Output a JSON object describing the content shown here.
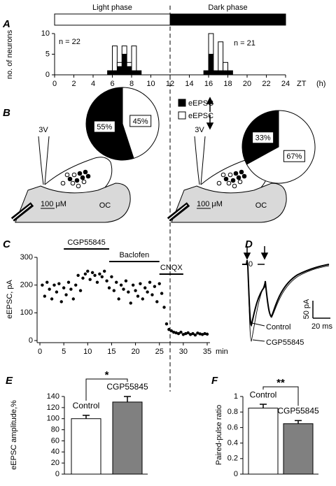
{
  "chart_data": [
    {
      "type": "histogram",
      "panel_label": "A",
      "phase_labels": [
        "Light phase",
        "Dark phase"
      ],
      "annotations": [
        "n = 22",
        "n = 21"
      ],
      "ylabel": "no. of neurons",
      "xlabel": "ZT",
      "xunit": "(h)",
      "bins": [
        5.5,
        6,
        6.5,
        7,
        7.5,
        8,
        8.5,
        9,
        9.5,
        10,
        10.5,
        11,
        11.5,
        12,
        12.5,
        13,
        13.5,
        14,
        14.5,
        15,
        15.5,
        16,
        16.5,
        17,
        17.5,
        18,
        18.5
      ],
      "series": [
        {
          "color": "#000000",
          "values": [
            1,
            1,
            2,
            5,
            2,
            1,
            1,
            0,
            0,
            0,
            0,
            0,
            0,
            0,
            0,
            0,
            0,
            0,
            0,
            0,
            1,
            5,
            1,
            1,
            1,
            1
          ]
        },
        {
          "color": "#ffffff",
          "values": [
            0,
            6,
            1,
            2,
            1,
            6,
            0,
            0,
            0,
            0,
            0,
            0,
            0,
            0,
            0,
            0,
            0,
            0,
            0,
            0,
            0,
            5,
            0,
            7,
            2,
            0
          ]
        }
      ],
      "xlim": [
        0,
        24
      ],
      "xticks": [
        0,
        2,
        4,
        6,
        8,
        10,
        12,
        14,
        16,
        18,
        20,
        22,
        24
      ],
      "ylim": [
        0,
        10
      ],
      "yticks": [
        0,
        5,
        10
      ]
    },
    {
      "type": "pie",
      "panel_label": "B",
      "categories": [
        "eEPSC",
        "eEPSC"
      ],
      "colors": [
        "#000000",
        "#ffffff"
      ],
      "values": [
        55,
        45
      ],
      "value_labels": [
        "55%",
        "45%"
      ],
      "schematic_labels": [
        "3V",
        "100 μM",
        "OC"
      ]
    },
    {
      "type": "pie",
      "colors": [
        "#000000",
        "#ffffff"
      ],
      "values": [
        33,
        67
      ],
      "value_labels": [
        "33%",
        "67%"
      ],
      "schematic_labels": [
        "3V",
        "100 μM",
        "OC"
      ]
    },
    {
      "type": "scatter",
      "panel_label": "C",
      "ylabel": "eEPSC, pA",
      "xlabel": "min",
      "color": "#000000",
      "x": [
        0.5,
        1,
        1.5,
        2,
        2.5,
        3,
        3.5,
        4,
        4.5,
        5,
        5.5,
        6,
        6.5,
        7,
        7.5,
        8,
        8.5,
        9,
        9.5,
        10,
        10.5,
        11,
        11.5,
        12,
        12.5,
        13,
        13.5,
        14,
        14.5,
        15,
        15.5,
        16,
        16.5,
        17,
        17.5,
        18,
        18.5,
        19,
        19.5,
        20,
        20.5,
        21,
        21.5,
        22,
        22.5,
        23,
        23.5,
        24,
        24.5,
        25,
        25.5,
        26,
        26.5,
        27,
        27.5,
        28,
        28.5,
        29,
        29.5,
        30,
        30.5,
        31,
        31.5,
        32,
        32.5,
        33,
        33.5,
        34,
        34.5,
        35
      ],
      "values": [
        200,
        160,
        210,
        185,
        150,
        200,
        175,
        205,
        140,
        190,
        165,
        210,
        185,
        150,
        200,
        235,
        180,
        225,
        240,
        250,
        220,
        245,
        235,
        210,
        240,
        230,
        250,
        215,
        190,
        230,
        180,
        210,
        150,
        200,
        185,
        215,
        175,
        135,
        200,
        180,
        160,
        205,
        150,
        190,
        175,
        210,
        165,
        195,
        140,
        205,
        170,
        120,
        60,
        40,
        35,
        30,
        28,
        25,
        30,
        22,
        25,
        28,
        22,
        25,
        20,
        27,
        24,
        22,
        25,
        23
      ],
      "periods": [
        {
          "label": "CGP55845",
          "start": 5,
          "end": 14.5
        },
        {
          "label": "Baclofen",
          "start": 14.5,
          "end": 25
        },
        {
          "label": "CNQX",
          "start": 25,
          "end": 30
        }
      ],
      "xlim": [
        0,
        35
      ],
      "xticks": [
        0,
        5,
        10,
        15,
        20,
        25,
        30,
        35
      ],
      "ylim": [
        0,
        300
      ],
      "yticks": [
        0,
        100,
        200,
        300
      ]
    },
    {
      "type": "traces",
      "panel_label": "D",
      "zero_label": "0",
      "scale_labels": [
        "50 pA",
        "20 ms"
      ],
      "trace_names": [
        "Control",
        "CGP55845"
      ]
    },
    {
      "type": "bar",
      "panel_label": "E",
      "ylabel": "eEPSC amplitude,%",
      "categories": [
        "Control",
        "CGP55845"
      ],
      "values": [
        100,
        130
      ],
      "errors": [
        6,
        10
      ],
      "colors": [
        "#ffffff",
        "#808080"
      ],
      "significance": "*",
      "ylim": [
        0,
        140
      ],
      "yticks": [
        0,
        20,
        40,
        60,
        80,
        100,
        120,
        140
      ]
    },
    {
      "type": "bar",
      "panel_label": "F",
      "ylabel": "Paired-pulse ratio",
      "categories": [
        "Control",
        "CGP55845"
      ],
      "values": [
        0.85,
        0.65
      ],
      "errors": [
        0.05,
        0.04
      ],
      "colors": [
        "#ffffff",
        "#808080"
      ],
      "significance": "**",
      "ylim": [
        0,
        1
      ],
      "yticks": [
        0,
        0.2,
        0.4,
        0.6,
        0.8,
        1
      ]
    }
  ]
}
